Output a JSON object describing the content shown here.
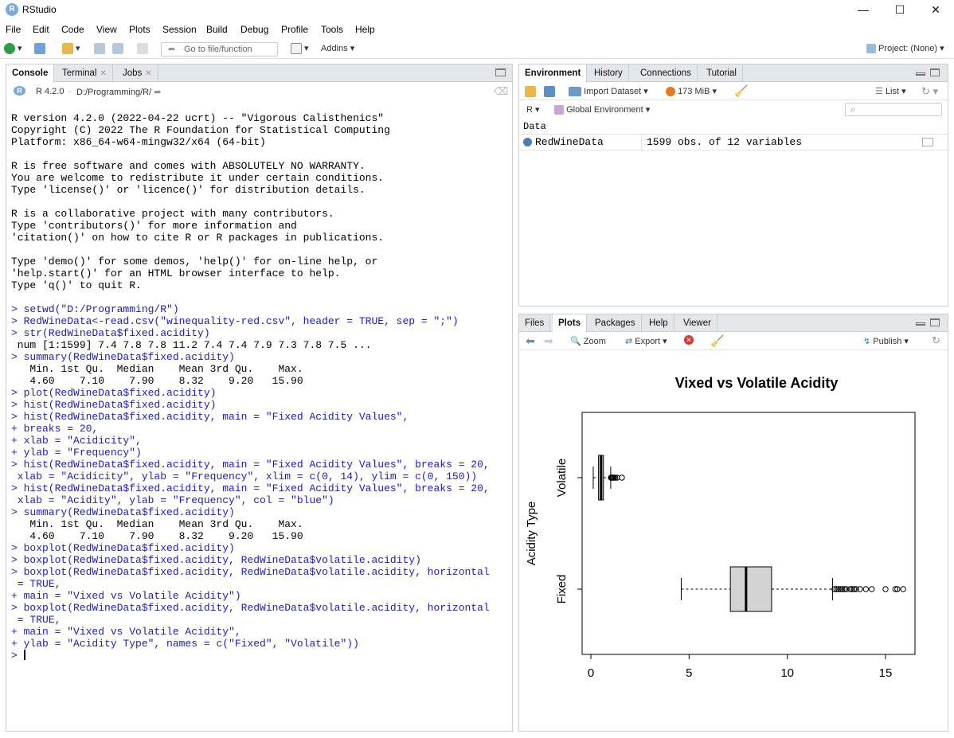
{
  "window": {
    "title": "RStudio",
    "icon": "R"
  },
  "menu": [
    "File",
    "Edit",
    "Code",
    "View",
    "Plots",
    "Session",
    "Build",
    "Debug",
    "Profile",
    "Tools",
    "Help"
  ],
  "toolbar": {
    "goto_placeholder": "Go to file/function",
    "addins": "Addins",
    "project": "Project: (None)"
  },
  "left_pane": {
    "tabs": [
      "Console",
      "Terminal",
      "Jobs"
    ],
    "r_version": "R 4.2.0",
    "path": "D:/Programming/R/",
    "console_lines": [
      {
        "t": "R version 4.2.0 (2022-04-22 ucrt) -- \"Vigorous Calisthenics\"",
        "k": "out"
      },
      {
        "t": "Copyright (C) 2022 The R Foundation for Statistical Computing",
        "k": "out"
      },
      {
        "t": "Platform: x86_64-w64-mingw32/x64 (64-bit)",
        "k": "out"
      },
      {
        "t": "",
        "k": "out"
      },
      {
        "t": "R is free software and comes with ABSOLUTELY NO WARRANTY.",
        "k": "out"
      },
      {
        "t": "You are welcome to redistribute it under certain conditions.",
        "k": "out"
      },
      {
        "t": "Type 'license()' or 'licence()' for distribution details.",
        "k": "out"
      },
      {
        "t": "",
        "k": "out"
      },
      {
        "t": "R is a collaborative project with many contributors.",
        "k": "out"
      },
      {
        "t": "Type 'contributors()' for more information and",
        "k": "out"
      },
      {
        "t": "'citation()' on how to cite R or R packages in publications.",
        "k": "out"
      },
      {
        "t": "",
        "k": "out"
      },
      {
        "t": "Type 'demo()' for some demos, 'help()' for on-line help, or",
        "k": "out"
      },
      {
        "t": "'help.start()' for an HTML browser interface to help.",
        "k": "out"
      },
      {
        "t": "Type 'q()' to quit R.",
        "k": "out"
      },
      {
        "t": "",
        "k": "out"
      },
      {
        "t": "> setwd(\"D:/Programming/R\")",
        "k": "in"
      },
      {
        "t": "> RedWineData<-read.csv(\"winequality-red.csv\", header = TRUE, sep = \";\")",
        "k": "in"
      },
      {
        "t": "> str(RedWineData$fixed.acidity)",
        "k": "in"
      },
      {
        "t": " num [1:1599] 7.4 7.8 7.8 11.2 7.4 7.4 7.9 7.3 7.8 7.5 ...",
        "k": "out"
      },
      {
        "t": "> summary(RedWineData$fixed.acidity)",
        "k": "in"
      },
      {
        "t": "   Min. 1st Qu.  Median    Mean 3rd Qu.    Max. ",
        "k": "out"
      },
      {
        "t": "   4.60    7.10    7.90    8.32    9.20   15.90 ",
        "k": "out"
      },
      {
        "t": "> plot(RedWineData$fixed.acidity)",
        "k": "in"
      },
      {
        "t": "> hist(RedWineData$fixed.acidity)",
        "k": "in"
      },
      {
        "t": "> hist(RedWineData$fixed.acidity, main = \"Fixed Acidity Values\",",
        "k": "in"
      },
      {
        "t": "+ breaks = 20,",
        "k": "in"
      },
      {
        "t": "+ xlab = \"Acidicity\",",
        "k": "in"
      },
      {
        "t": "+ ylab = \"Frequency\")",
        "k": "in"
      },
      {
        "t": "> hist(RedWineData$fixed.acidity, main = \"Fixed Acidity Values\", breaks = 20,",
        "k": "in"
      },
      {
        "t": " xlab = \"Acidicity\", ylab = \"Frequency\", xlim = c(0, 14), ylim = c(0, 150))",
        "k": "in"
      },
      {
        "t": "> hist(RedWineData$fixed.acidity, main = \"Fixed Acidity Values\", breaks = 20,",
        "k": "in"
      },
      {
        "t": " xlab = \"Acidity\", ylab = \"Frequency\", col = \"blue\")",
        "k": "in"
      },
      {
        "t": "> summary(RedWineData$fixed.acidity)",
        "k": "in"
      },
      {
        "t": "   Min. 1st Qu.  Median    Mean 3rd Qu.    Max. ",
        "k": "out"
      },
      {
        "t": "   4.60    7.10    7.90    8.32    9.20   15.90 ",
        "k": "out"
      },
      {
        "t": "> boxplot(RedWineData$fixed.acidity)",
        "k": "in"
      },
      {
        "t": "> boxplot(RedWineData$fixed.acidity, RedWineData$volatile.acidity)",
        "k": "in"
      },
      {
        "t": "> boxplot(RedWineData$fixed.acidity, RedWineData$volatile.acidity, horizontal",
        "k": "in"
      },
      {
        "t": " = TRUE,",
        "k": "in"
      },
      {
        "t": "+ main = \"Vixed vs Volatile Acidity\")",
        "k": "in"
      },
      {
        "t": "> boxplot(RedWineData$fixed.acidity, RedWineData$volatile.acidity, horizontal",
        "k": "in"
      },
      {
        "t": " = TRUE,",
        "k": "in"
      },
      {
        "t": "+ main = \"Vixed vs Volatile Acidity\",",
        "k": "in"
      },
      {
        "t": "+ ylab = \"Acidity Type\", names = c(\"Fixed\", \"Volatile\"))",
        "k": "in"
      }
    ],
    "prompt": "> "
  },
  "env_pane": {
    "tabs": [
      "Environment",
      "History",
      "Connections",
      "Tutorial"
    ],
    "import_dataset": "Import Dataset",
    "memory": "173 MiB",
    "view_mode": "List",
    "language": "R",
    "scope": "Global Environment",
    "section": "Data",
    "rows": [
      {
        "name": "RedWineData",
        "value": "1599 obs. of 12 variables"
      }
    ]
  },
  "plots_pane": {
    "tabs": [
      "Files",
      "Plots",
      "Packages",
      "Help",
      "Viewer"
    ],
    "zoom": "Zoom",
    "export": "Export",
    "publish": "Publish"
  },
  "chart_data": {
    "type": "boxplot",
    "orientation": "horizontal",
    "title": "Vixed vs Volatile Acidity",
    "ylabel": "Acidity Type",
    "xlabel": "",
    "xlim": [
      0,
      16
    ],
    "x_ticks": [
      0,
      5,
      10,
      15
    ],
    "series": [
      {
        "name": "Fixed",
        "min": 4.6,
        "q1": 7.1,
        "median": 7.9,
        "q3": 9.2,
        "whisker_high": 12.3,
        "outliers": [
          12.4,
          12.5,
          12.6,
          12.7,
          12.8,
          12.9,
          13.0,
          13.2,
          13.3,
          13.4,
          13.5,
          13.7,
          14.0,
          14.3,
          15.0,
          15.5,
          15.6,
          15.9
        ]
      },
      {
        "name": "Volatile",
        "min": 0.12,
        "q1": 0.39,
        "median": 0.52,
        "q3": 0.64,
        "whisker_high": 1.01,
        "outliers": [
          1.02,
          1.04,
          1.07,
          1.09,
          1.13,
          1.18,
          1.24,
          1.33,
          1.58
        ]
      }
    ],
    "box_color": "#d3d3d3"
  }
}
